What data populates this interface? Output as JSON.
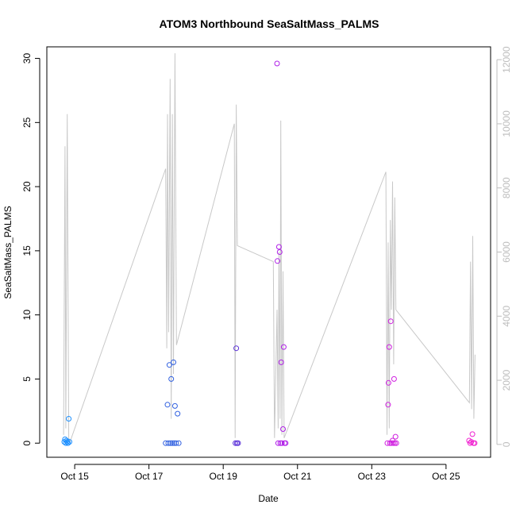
{
  "chart_data": {
    "type": "scatter",
    "title": "ATOM3 Northbound SeaSaltMass_PALMS",
    "xlabel": "Date",
    "ylabel": "SeaSaltMass_PALMS",
    "x_ticks": [
      "Oct 15",
      "Oct 17",
      "Oct 19",
      "Oct 21",
      "Oct 23",
      "Oct 25"
    ],
    "x_tick_values": [
      15,
      17,
      19,
      21,
      23,
      25
    ],
    "xlim": [
      14.25,
      26.2
    ],
    "ylim": [
      -1.1,
      30.9
    ],
    "y_ticks": [
      0,
      5,
      10,
      15,
      20,
      25,
      30
    ],
    "y2lim": [
      -400,
      12400
    ],
    "y2_ticks": [
      0,
      2000,
      4000,
      6000,
      8000,
      10000,
      12000
    ],
    "y2_color": "#bdbdbd",
    "grid": false,
    "series": [
      {
        "kind": "points",
        "note": "color gradient from blue (early) to magenta (late)",
        "points": [
          {
            "x": 14.72,
            "y": 0.1,
            "color": "#1e90ff"
          },
          {
            "x": 14.74,
            "y": 0.3,
            "color": "#1e90ff"
          },
          {
            "x": 14.76,
            "y": 0.0,
            "color": "#1e90ff"
          },
          {
            "x": 14.78,
            "y": 0.2,
            "color": "#1e90ff"
          },
          {
            "x": 14.8,
            "y": 0.1,
            "color": "#1e90ff"
          },
          {
            "x": 14.82,
            "y": 0.0,
            "color": "#1e90ff"
          },
          {
            "x": 14.84,
            "y": 1.9,
            "color": "#1e90ff"
          },
          {
            "x": 14.86,
            "y": 0.1,
            "color": "#1e90ff"
          },
          {
            "x": 17.45,
            "y": 0.0,
            "color": "#3060e0"
          },
          {
            "x": 17.5,
            "y": 3.0,
            "color": "#3060e0"
          },
          {
            "x": 17.52,
            "y": 0.0,
            "color": "#3060e0"
          },
          {
            "x": 17.55,
            "y": 6.1,
            "color": "#3060e0"
          },
          {
            "x": 17.58,
            "y": 0.0,
            "color": "#3060e0"
          },
          {
            "x": 17.6,
            "y": 5.0,
            "color": "#3060e0"
          },
          {
            "x": 17.63,
            "y": 0.0,
            "color": "#3060e0"
          },
          {
            "x": 17.66,
            "y": 6.3,
            "color": "#3060e0"
          },
          {
            "x": 17.68,
            "y": 0.0,
            "color": "#3060e0"
          },
          {
            "x": 17.7,
            "y": 2.9,
            "color": "#3060e0"
          },
          {
            "x": 17.73,
            "y": 0.0,
            "color": "#3060e0"
          },
          {
            "x": 17.77,
            "y": 2.3,
            "color": "#3060e0"
          },
          {
            "x": 17.8,
            "y": 0.0,
            "color": "#3060e0"
          },
          {
            "x": 19.33,
            "y": 0.0,
            "color": "#5a30d8"
          },
          {
            "x": 19.35,
            "y": 7.4,
            "color": "#5a30d8"
          },
          {
            "x": 19.37,
            "y": 0.0,
            "color": "#5a30d8"
          },
          {
            "x": 19.4,
            "y": 0.0,
            "color": "#5a30d8"
          },
          {
            "x": 20.45,
            "y": 29.6,
            "color": "#b020e8"
          },
          {
            "x": 20.46,
            "y": 14.2,
            "color": "#b020e8"
          },
          {
            "x": 20.48,
            "y": 0.0,
            "color": "#b020e8"
          },
          {
            "x": 20.5,
            "y": 15.3,
            "color": "#b020e8"
          },
          {
            "x": 20.52,
            "y": 14.9,
            "color": "#b020e8"
          },
          {
            "x": 20.54,
            "y": 0.0,
            "color": "#b020e8"
          },
          {
            "x": 20.56,
            "y": 6.3,
            "color": "#b020e8"
          },
          {
            "x": 20.58,
            "y": 0.0,
            "color": "#b020e8"
          },
          {
            "x": 20.61,
            "y": 1.1,
            "color": "#b020e8"
          },
          {
            "x": 20.63,
            "y": 7.5,
            "color": "#b020e8"
          },
          {
            "x": 20.65,
            "y": 0.0,
            "color": "#b020e8"
          },
          {
            "x": 20.68,
            "y": 0.0,
            "color": "#b020e8"
          },
          {
            "x": 23.42,
            "y": 0.0,
            "color": "#d020e0"
          },
          {
            "x": 23.44,
            "y": 3.0,
            "color": "#d020e0"
          },
          {
            "x": 23.45,
            "y": 4.7,
            "color": "#d020e0"
          },
          {
            "x": 23.47,
            "y": 7.5,
            "color": "#d020e0"
          },
          {
            "x": 23.49,
            "y": 0.0,
            "color": "#d020e0"
          },
          {
            "x": 23.51,
            "y": 9.5,
            "color": "#d020e0"
          },
          {
            "x": 23.53,
            "y": 0.0,
            "color": "#d020e0"
          },
          {
            "x": 23.56,
            "y": 0.2,
            "color": "#d020e0"
          },
          {
            "x": 23.58,
            "y": 0.0,
            "color": "#d020e0"
          },
          {
            "x": 23.6,
            "y": 5.0,
            "color": "#d020e0"
          },
          {
            "x": 23.62,
            "y": 0.0,
            "color": "#d020e0"
          },
          {
            "x": 23.64,
            "y": 0.5,
            "color": "#d020e0"
          },
          {
            "x": 23.66,
            "y": 0.0,
            "color": "#d020e0"
          },
          {
            "x": 25.62,
            "y": 0.2,
            "color": "#f020d0"
          },
          {
            "x": 25.65,
            "y": 0.0,
            "color": "#f020d0"
          },
          {
            "x": 25.68,
            "y": 0.1,
            "color": "#f020d0"
          },
          {
            "x": 25.71,
            "y": 0.7,
            "color": "#f020d0"
          },
          {
            "x": 25.74,
            "y": 0.0,
            "color": "#f020d0"
          },
          {
            "x": 25.77,
            "y": 0.0,
            "color": "#f020d0"
          }
        ]
      },
      {
        "kind": "line",
        "axis": "right",
        "color": "#c8c8c8",
        "points": [
          {
            "x": 14.7,
            "y": 300
          },
          {
            "x": 14.74,
            "y": 9300
          },
          {
            "x": 14.76,
            "y": 500
          },
          {
            "x": 14.8,
            "y": 10300
          },
          {
            "x": 14.84,
            "y": 200
          },
          {
            "x": 14.88,
            "y": 100
          },
          {
            "x": 17.45,
            "y": 8600
          },
          {
            "x": 17.48,
            "y": 3000
          },
          {
            "x": 17.5,
            "y": 10300
          },
          {
            "x": 17.53,
            "y": 3500
          },
          {
            "x": 17.57,
            "y": 11400
          },
          {
            "x": 17.6,
            "y": 800
          },
          {
            "x": 17.63,
            "y": 10300
          },
          {
            "x": 17.66,
            "y": 2200
          },
          {
            "x": 17.7,
            "y": 12200
          },
          {
            "x": 17.74,
            "y": 3100
          },
          {
            "x": 19.3,
            "y": 10000
          },
          {
            "x": 19.32,
            "y": 200
          },
          {
            "x": 19.35,
            "y": 10600
          },
          {
            "x": 19.38,
            "y": 6200
          },
          {
            "x": 20.35,
            "y": 5700
          },
          {
            "x": 20.38,
            "y": 200
          },
          {
            "x": 20.45,
            "y": 4200
          },
          {
            "x": 20.48,
            "y": 500
          },
          {
            "x": 20.5,
            "y": 6000
          },
          {
            "x": 20.53,
            "y": 800
          },
          {
            "x": 20.55,
            "y": 10100
          },
          {
            "x": 20.58,
            "y": 300
          },
          {
            "x": 20.61,
            "y": 5400
          },
          {
            "x": 20.64,
            "y": 200
          },
          {
            "x": 23.38,
            "y": 8500
          },
          {
            "x": 23.41,
            "y": 300
          },
          {
            "x": 23.44,
            "y": 6300
          },
          {
            "x": 23.47,
            "y": 500
          },
          {
            "x": 23.5,
            "y": 7000
          },
          {
            "x": 23.53,
            "y": 4200
          },
          {
            "x": 23.56,
            "y": 8200
          },
          {
            "x": 23.59,
            "y": 2500
          },
          {
            "x": 23.62,
            "y": 7700
          },
          {
            "x": 23.65,
            "y": 4200
          },
          {
            "x": 25.63,
            "y": 1300
          },
          {
            "x": 25.66,
            "y": 5700
          },
          {
            "x": 25.69,
            "y": 1100
          },
          {
            "x": 25.72,
            "y": 6500
          },
          {
            "x": 25.75,
            "y": 800
          },
          {
            "x": 25.78,
            "y": 2800
          }
        ]
      }
    ]
  }
}
